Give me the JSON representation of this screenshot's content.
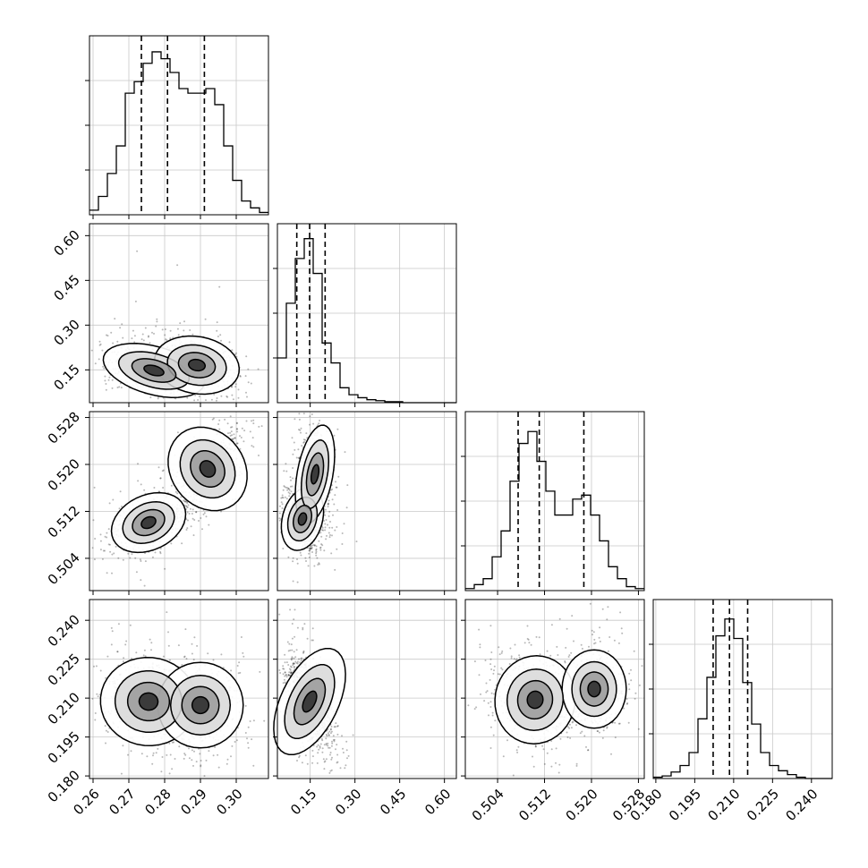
{
  "chart_data": {
    "type": "corner",
    "title": "",
    "grid": true,
    "parameters": [
      {
        "range": [
          0.259,
          0.309
        ],
        "ticks": [
          "0.26",
          "0.27",
          "0.28",
          "0.29",
          "0.30"
        ],
        "quantiles": [
          0.2735,
          0.2808,
          0.2911
        ]
      },
      {
        "range": [
          0.04,
          0.64
        ],
        "ticks": [
          "0.15",
          "0.30",
          "0.45",
          "0.60"
        ],
        "quantiles": [
          0.105,
          0.148,
          0.2
        ]
      },
      {
        "range": [
          0.4985,
          0.529
        ],
        "ticks": [
          "0.504",
          "0.512",
          "0.520",
          "0.528"
        ],
        "quantiles": [
          0.5075,
          0.5111,
          0.5187
        ]
      },
      {
        "range": [
          0.179,
          0.248
        ],
        "ticks": [
          "0.180",
          "0.195",
          "0.210",
          "0.225",
          "0.240"
        ],
        "quantiles": [
          0.2021,
          0.2084,
          0.2154
        ]
      }
    ],
    "marginal_histograms": [
      {
        "param": 0,
        "counts": [
          2,
          8,
          18,
          30,
          53,
          58,
          66,
          71,
          68,
          62,
          55,
          53,
          53,
          55,
          48,
          30,
          15,
          6,
          3,
          1
        ],
        "ylim": [
          0,
          78
        ]
      },
      {
        "param": 1,
        "counts": [
          45,
          100,
          145,
          165,
          130,
          60,
          40,
          15,
          8,
          5,
          3,
          2,
          1,
          1,
          0,
          0,
          0,
          0,
          0,
          0
        ],
        "ylim": [
          0,
          180
        ]
      },
      {
        "param": 2,
        "counts": [
          1,
          3,
          6,
          17,
          30,
          55,
          74,
          80,
          65,
          50,
          38,
          38,
          46,
          48,
          38,
          25,
          12,
          6,
          2,
          1
        ],
        "ylim": [
          0,
          90
        ]
      },
      {
        "param": 3,
        "counts": [
          1,
          2,
          5,
          10,
          20,
          46,
          78,
          110,
          123,
          108,
          74,
          42,
          20,
          10,
          6,
          3,
          1,
          0,
          0,
          0
        ],
        "ylim": [
          0,
          138
        ]
      }
    ],
    "pair_panels": [
      {
        "x_param": 0,
        "y_param": 1
      },
      {
        "x_param": 0,
        "y_param": 2
      },
      {
        "x_param": 1,
        "y_param": 2
      },
      {
        "x_param": 0,
        "y_param": 3
      },
      {
        "x_param": 1,
        "y_param": 3
      },
      {
        "x_param": 2,
        "y_param": 3
      }
    ]
  }
}
